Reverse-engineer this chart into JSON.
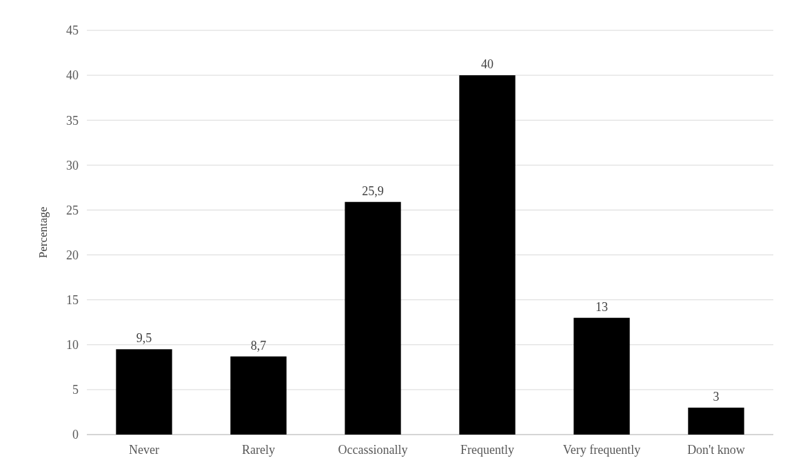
{
  "chart_data": {
    "type": "bar",
    "ylabel": "Percentage",
    "categories": [
      "Never",
      "Rarely",
      "Occassionally",
      "Frequently",
      "Very frequently",
      "Don't know"
    ],
    "values": [
      9.5,
      8.7,
      25.9,
      40,
      13,
      3
    ],
    "value_labels": [
      "9,5",
      "8,7",
      "25,9",
      "40",
      "13",
      "3"
    ],
    "color": "#000000",
    "ylim": [
      0,
      45
    ],
    "yticks": [
      0,
      5,
      10,
      15,
      20,
      25,
      30,
      35,
      40,
      45
    ],
    "grid": "y"
  }
}
